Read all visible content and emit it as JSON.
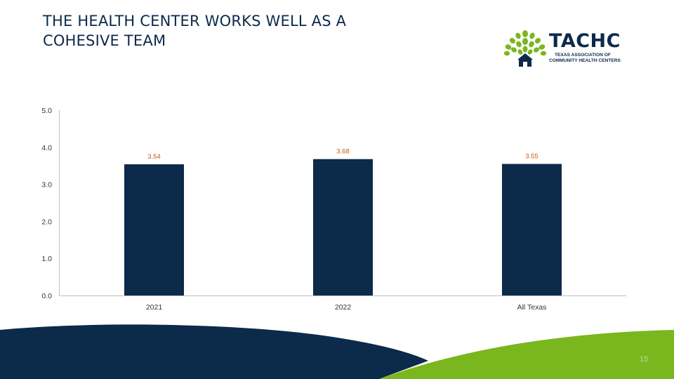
{
  "slide": {
    "title_lines": [
      "THE HEALTH CENTER WORKS WELL AS A",
      "COHESIVE TEAM"
    ],
    "page_number": "15"
  },
  "logo": {
    "name": "TACHC",
    "subtitle_line1": "TEXAS ASSOCIATION OF",
    "subtitle_line2": "COMMUNITY HEALTH CENTERS"
  },
  "colors": {
    "navy": "#0c2a4a",
    "green": "#7ab61e",
    "label_orange": "#c55a11"
  },
  "chart_data": {
    "type": "bar",
    "categories": [
      "2021",
      "2022",
      "All Texas"
    ],
    "values": [
      3.54,
      3.68,
      3.55
    ],
    "data_labels": [
      "3.54",
      "3.68",
      "3.55"
    ],
    "ylim": [
      0,
      5
    ],
    "y_ticks": [
      "0.0",
      "1.0",
      "2.0",
      "3.0",
      "4.0",
      "5.0"
    ],
    "xlabel": "",
    "ylabel": "",
    "grid": false,
    "legend": "none"
  }
}
